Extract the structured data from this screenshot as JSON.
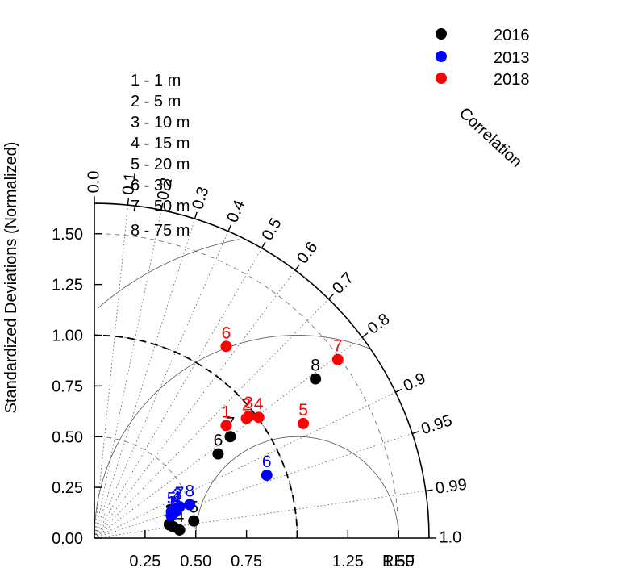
{
  "chart_data": {
    "type": "taylor-diagram",
    "title": "",
    "ylabel": "Standardized Deviations (Normalized)",
    "correlation_label": "Correlation",
    "ref_label": "REF",
    "std_max": 1.65,
    "std_ticks": [
      "0.00",
      "0.25",
      "0.50",
      "0.75",
      "1.00",
      "1.25",
      "1.50"
    ],
    "x_ticks": [
      "0.25",
      "0.50",
      "0.75",
      "1.25",
      "1.50"
    ],
    "corr_ticks": [
      "0.0",
      "0.1",
      "0.2",
      "0.3",
      "0.4",
      "0.5",
      "0.6",
      "0.7",
      "0.8",
      "0.9",
      "0.95",
      "0.99",
      "1.0"
    ],
    "corr_lines": [
      0.1,
      0.2,
      0.3,
      0.4,
      0.5,
      0.6,
      0.7,
      0.8,
      0.9,
      0.95,
      0.99
    ],
    "rms_arcs": [
      0.5,
      1.0,
      1.5
    ],
    "std_arcs": [
      0.5,
      1.0,
      1.5
    ],
    "legend_position": "top-right",
    "legend": [
      {
        "label": "2016",
        "color": "#000000"
      },
      {
        "label": "2013",
        "color": "#0000ff"
      },
      {
        "label": "2018",
        "color": "#ff0000"
      }
    ],
    "depth_key": [
      "1 - 1 m",
      "2 - 5 m",
      "3 - 10 m",
      "4 - 15 m",
      "5 - 20 m",
      "6 - 30",
      "7 - 50 m",
      "8 - 75 m"
    ],
    "series": [
      {
        "name": "2016",
        "color": "#000000",
        "points": [
          {
            "label": "1",
            "x": 0.37,
            "y": 0.065
          },
          {
            "label": "2",
            "x": 0.37,
            "y": 0.07
          },
          {
            "label": "3",
            "x": 0.39,
            "y": 0.055
          },
          {
            "label": "4",
            "x": 0.42,
            "y": 0.04
          },
          {
            "label": "5",
            "x": 0.49,
            "y": 0.085
          },
          {
            "label": "6",
            "x": 0.61,
            "y": 0.415
          },
          {
            "label": "7",
            "x": 0.67,
            "y": 0.5
          },
          {
            "label": "8",
            "x": 1.09,
            "y": 0.785
          }
        ]
      },
      {
        "name": "2013",
        "color": "#0000ff",
        "points": [
          {
            "label": "1",
            "x": 0.38,
            "y": 0.11
          },
          {
            "label": "2",
            "x": 0.4,
            "y": 0.14
          },
          {
            "label": "3",
            "x": 0.41,
            "y": 0.15
          },
          {
            "label": "4",
            "x": 0.4,
            "y": 0.13
          },
          {
            "label": "5",
            "x": 0.38,
            "y": 0.13
          },
          {
            "label": "7",
            "x": 0.42,
            "y": 0.155
          },
          {
            "label": "8",
            "x": 0.47,
            "y": 0.165
          },
          {
            "label": "6",
            "x": 0.85,
            "y": 0.31
          }
        ]
      },
      {
        "name": "2018",
        "color": "#ff0000",
        "points": [
          {
            "label": "1",
            "x": 0.65,
            "y": 0.555
          },
          {
            "label": "2",
            "x": 0.75,
            "y": 0.59
          },
          {
            "label": "3",
            "x": 0.76,
            "y": 0.6
          },
          {
            "label": "4",
            "x": 0.81,
            "y": 0.595
          },
          {
            "label": "5",
            "x": 1.03,
            "y": 0.565
          },
          {
            "label": "6",
            "x": 0.65,
            "y": 0.945
          },
          {
            "label": "7",
            "x": 1.2,
            "y": 0.88
          }
        ]
      }
    ]
  }
}
